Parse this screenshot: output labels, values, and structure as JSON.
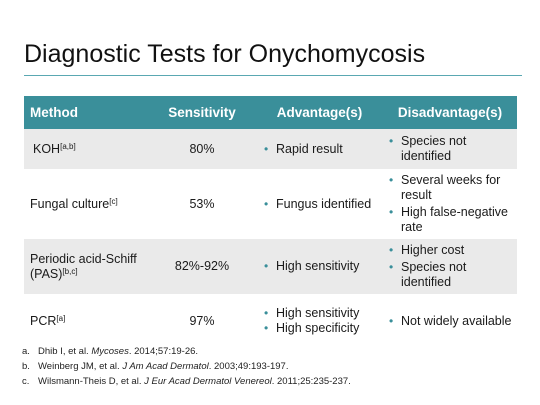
{
  "title": "Diagnostic Tests for Onychomycosis",
  "table": {
    "headers": [
      "Method",
      "Sensitivity",
      "Advantage(s)",
      "Disadvantage(s)"
    ],
    "rows": [
      {
        "method": "KOH",
        "method_sup": "[a,b]",
        "sensitivity": "80%",
        "advantages": [
          "Rapid result"
        ],
        "disadvantages": [
          "Species not identified"
        ]
      },
      {
        "method": "Fungal culture",
        "method_sup": "[c]",
        "sensitivity": "53%",
        "advantages": [
          "Fungus identified"
        ],
        "disadvantages": [
          "Several weeks for result",
          "High false-negative rate"
        ]
      },
      {
        "method": "Periodic acid-Schiff (PAS)",
        "method_sup": "[b,c]",
        "sensitivity": "82%-92%",
        "advantages": [
          "High sensitivity"
        ],
        "disadvantages": [
          "Higher cost",
          "Species not identified"
        ]
      },
      {
        "method": "PCR",
        "method_sup": "[a]",
        "sensitivity": "97%",
        "advantages": [
          "High sensitivity",
          "High specificity"
        ],
        "disadvantages": [
          "Not widely available"
        ]
      }
    ]
  },
  "references": [
    {
      "letter": "a.",
      "author": "Dhib I, et al. ",
      "journal": "Mycoses",
      "citation": ". 2014;57:19-26."
    },
    {
      "letter": "b.",
      "author": "Weinberg JM, et al. ",
      "journal": "J Am Acad Dermatol",
      "citation": ". 2003;49:193-197."
    },
    {
      "letter": "c.",
      "author": "Wilsmann-Theis D, et al. ",
      "journal": "J Eur Acad Dermatol Venereol",
      "citation": ". 2011;25:235-237."
    }
  ],
  "colors": {
    "header_bg": "#3a8f9a",
    "row_alt": "#eaeaea",
    "rule": "#5aa8b2"
  }
}
